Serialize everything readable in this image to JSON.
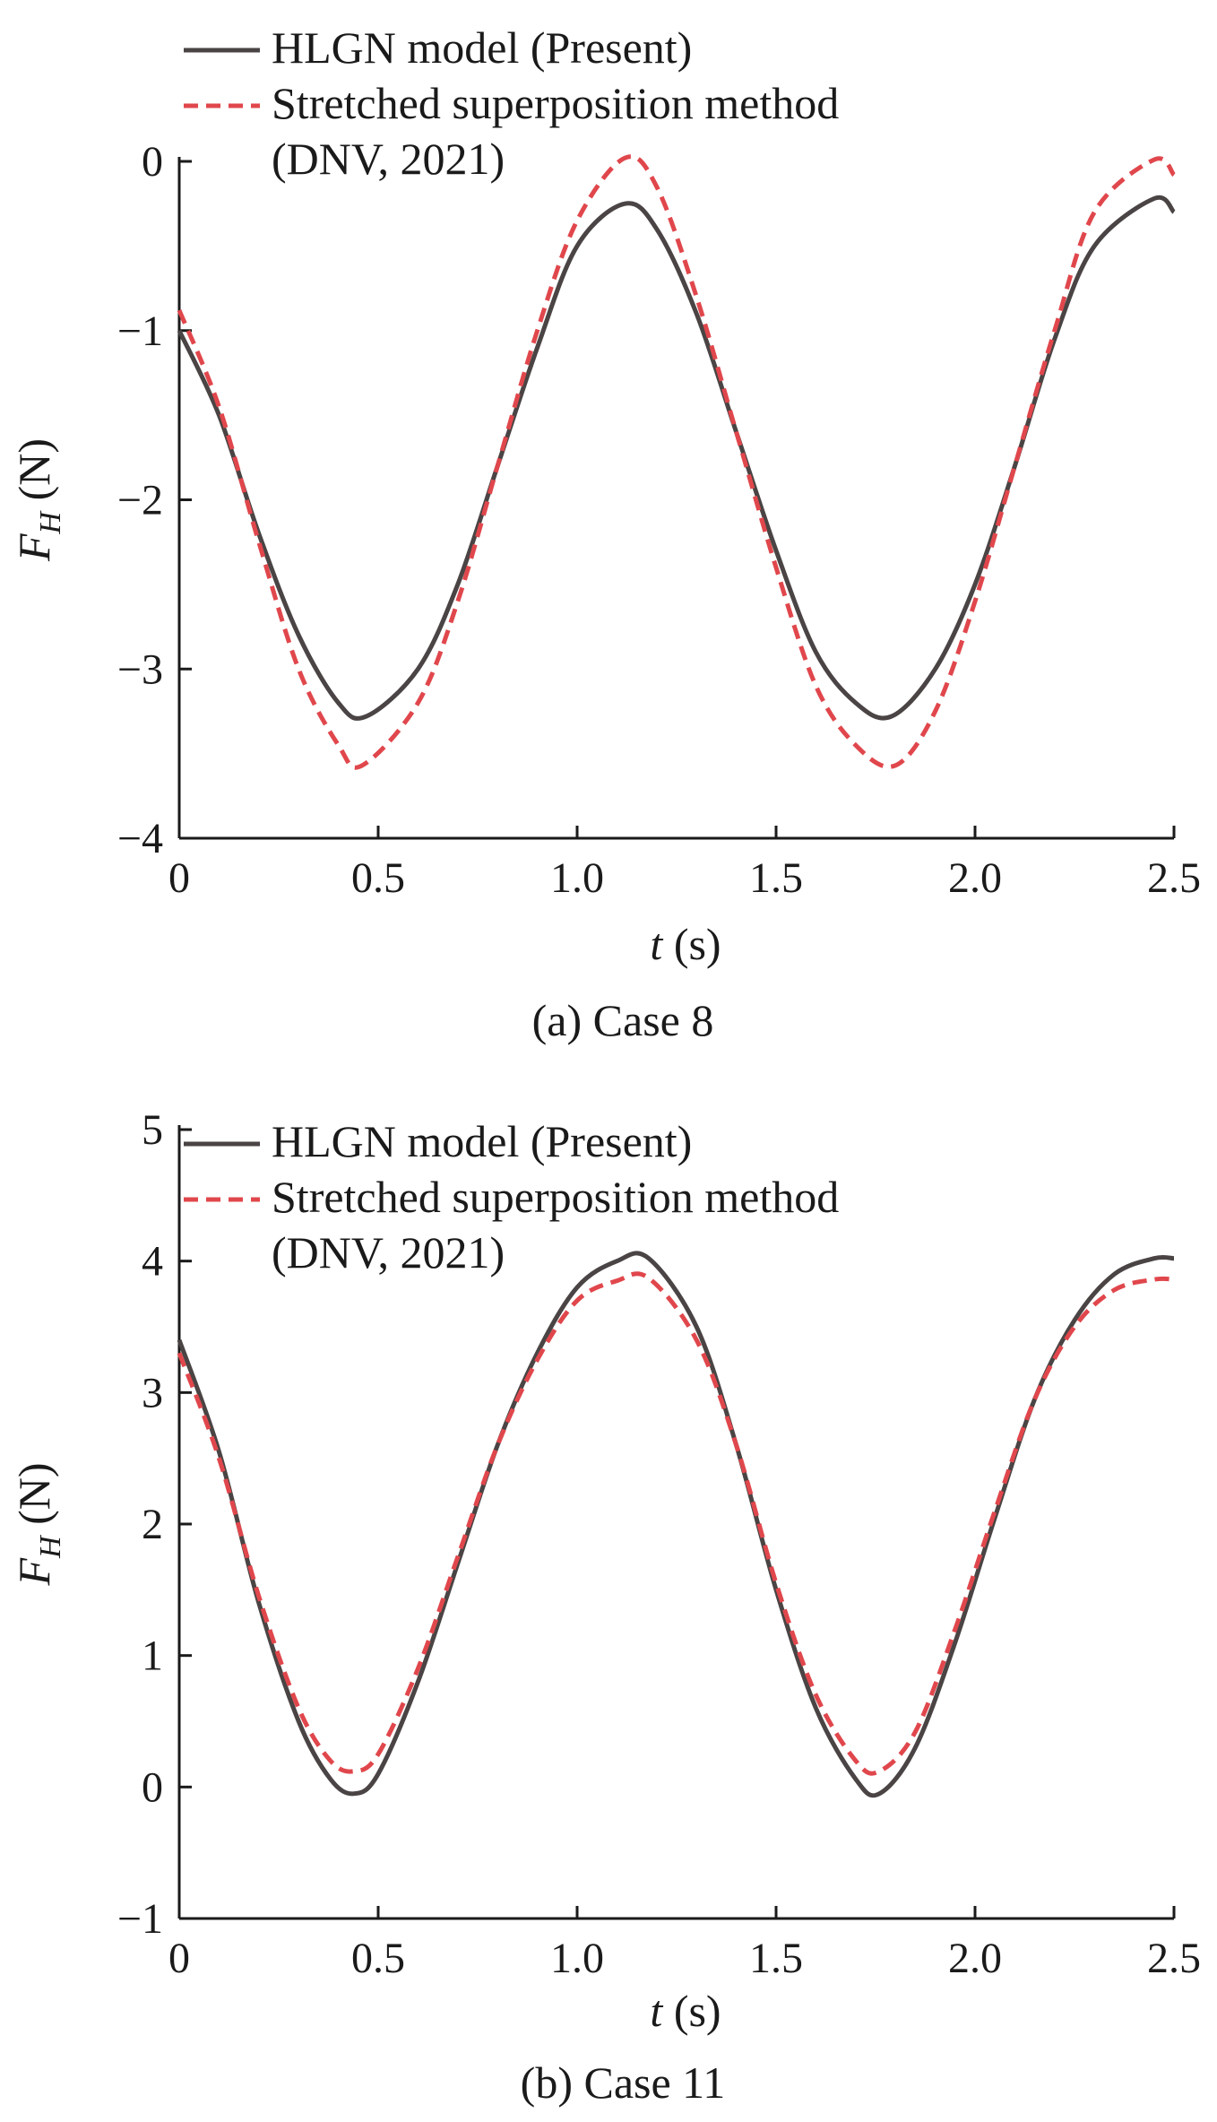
{
  "chart_data": [
    {
      "type": "line",
      "caption": "(a) Case 8",
      "xlabel_var": "t",
      "xlabel_unit": " (s)",
      "ylabel_var": "F",
      "ylabel_sub": "H",
      "ylabel_unit": " (N)",
      "xlim": [
        0,
        2.5
      ],
      "ylim": [
        -4,
        0
      ],
      "xticks": [
        0,
        0.5,
        1.0,
        1.5,
        2.0,
        2.5
      ],
      "xtick_labels": [
        "0",
        "0.5",
        "1.0",
        "1.5",
        "2.0",
        "2.5"
      ],
      "yticks": [
        0,
        -1,
        -2,
        -3,
        -4
      ],
      "ytick_labels": [
        "0",
        "−1",
        "−2",
        "−3",
        "−4"
      ],
      "legend": {
        "position": "top-left",
        "entries": [
          "HLGN model (Present)",
          "Stretched superposition method"
        ],
        "continuation": "(DNV, 2021)"
      },
      "grid": false,
      "series": [
        {
          "name": "HLGN model (Present)",
          "style": "solid",
          "color": "#4a4444",
          "x": [
            0,
            0.1,
            0.2,
            0.3,
            0.4,
            0.47,
            0.6,
            0.7,
            0.8,
            0.9,
            1.0,
            1.12,
            1.2,
            1.3,
            1.4,
            1.5,
            1.6,
            1.7,
            1.79,
            1.9,
            2.0,
            2.1,
            2.2,
            2.3,
            2.45,
            2.5
          ],
          "y": [
            -1.0,
            -1.5,
            -2.2,
            -2.8,
            -3.2,
            -3.28,
            -3.0,
            -2.5,
            -1.8,
            -1.1,
            -0.5,
            -0.25,
            -0.4,
            -0.9,
            -1.6,
            -2.3,
            -2.9,
            -3.2,
            -3.28,
            -3.0,
            -2.5,
            -1.8,
            -1.05,
            -0.5,
            -0.22,
            -0.3
          ]
        },
        {
          "name": "Stretched superposition method (DNV, 2021)",
          "style": "dashed",
          "color": "#e0474c",
          "x": [
            0,
            0.1,
            0.2,
            0.3,
            0.4,
            0.46,
            0.6,
            0.7,
            0.8,
            0.9,
            1.0,
            1.12,
            1.2,
            1.3,
            1.4,
            1.5,
            1.6,
            1.7,
            1.8,
            1.9,
            2.0,
            2.1,
            2.2,
            2.3,
            2.45,
            2.5
          ],
          "y": [
            -0.88,
            -1.45,
            -2.25,
            -3.0,
            -3.45,
            -3.57,
            -3.2,
            -2.6,
            -1.8,
            -1.0,
            -0.35,
            0.02,
            -0.15,
            -0.8,
            -1.6,
            -2.4,
            -3.1,
            -3.45,
            -3.57,
            -3.25,
            -2.6,
            -1.8,
            -1.0,
            -0.3,
            0.01,
            -0.08
          ]
        }
      ]
    },
    {
      "type": "line",
      "caption": "(b) Case 11",
      "xlabel_var": "t",
      "xlabel_unit": " (s)",
      "ylabel_var": "F",
      "ylabel_sub": "H",
      "ylabel_unit": " (N)",
      "xlim": [
        0,
        2.5
      ],
      "ylim": [
        -1,
        5
      ],
      "xticks": [
        0,
        0.5,
        1.0,
        1.5,
        2.0,
        2.5
      ],
      "xtick_labels": [
        "0",
        "0.5",
        "1.0",
        "1.5",
        "2.0",
        "2.5"
      ],
      "yticks": [
        5,
        4,
        3,
        2,
        1,
        0,
        -1
      ],
      "ytick_labels": [
        "5",
        "4",
        "3",
        "2",
        "1",
        "0",
        "−1"
      ],
      "legend": {
        "position": "top-left",
        "entries": [
          "HLGN model (Present)",
          "Stretched superposition method"
        ],
        "continuation": "(DNV, 2021)"
      },
      "grid": false,
      "series": [
        {
          "name": "HLGN model (Present)",
          "style": "solid",
          "color": "#4a4444",
          "x": [
            0,
            0.1,
            0.2,
            0.3,
            0.38,
            0.44,
            0.5,
            0.6,
            0.7,
            0.8,
            0.9,
            1.0,
            1.1,
            1.18,
            1.3,
            1.4,
            1.5,
            1.6,
            1.7,
            1.76,
            1.85,
            1.95,
            2.05,
            2.15,
            2.25,
            2.35,
            2.45,
            2.5
          ],
          "y": [
            3.4,
            2.55,
            1.4,
            0.5,
            0.06,
            -0.05,
            0.1,
            0.8,
            1.7,
            2.6,
            3.3,
            3.8,
            4.0,
            4.02,
            3.5,
            2.6,
            1.5,
            0.6,
            0.06,
            -0.05,
            0.3,
            1.1,
            2.05,
            2.95,
            3.55,
            3.9,
            4.02,
            4.02
          ]
        },
        {
          "name": "Stretched superposition method (DNV, 2021)",
          "style": "dashed",
          "color": "#e0474c",
          "x": [
            0,
            0.1,
            0.2,
            0.3,
            0.38,
            0.44,
            0.5,
            0.6,
            0.7,
            0.8,
            0.9,
            1.0,
            1.1,
            1.18,
            1.3,
            1.4,
            1.5,
            1.6,
            1.7,
            1.76,
            1.85,
            1.95,
            2.05,
            2.15,
            2.25,
            2.35,
            2.45,
            2.5
          ],
          "y": [
            3.3,
            2.5,
            1.45,
            0.6,
            0.2,
            0.12,
            0.25,
            0.9,
            1.75,
            2.6,
            3.25,
            3.7,
            3.85,
            3.87,
            3.4,
            2.6,
            1.55,
            0.7,
            0.2,
            0.12,
            0.42,
            1.2,
            2.1,
            2.95,
            3.5,
            3.78,
            3.86,
            3.86
          ]
        }
      ]
    }
  ]
}
